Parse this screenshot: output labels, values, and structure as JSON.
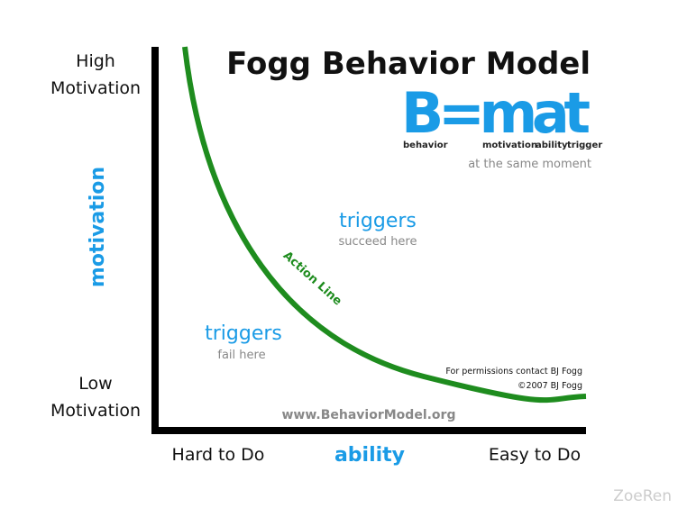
{
  "title": "Fogg Behavior Model",
  "formula": {
    "text": "B=mat",
    "labels": [
      "behavior",
      "motivation",
      "ability",
      "trigger"
    ],
    "note": "at the same moment"
  },
  "y_axis": {
    "high": [
      "High",
      "Motivation"
    ],
    "low": [
      "Low",
      "Motivation"
    ],
    "label": "motivation"
  },
  "x_axis": {
    "low": "Hard to Do",
    "label": "ability",
    "high": "Easy to Do"
  },
  "regions": [
    {
      "title": "triggers",
      "subtitle": "succeed here"
    },
    {
      "title": "triggers",
      "subtitle": "fail here"
    }
  ],
  "curve_label": "Action Line",
  "credits": [
    "For permissions contact BJ Fogg",
    "©2007 BJ Fogg"
  ],
  "url": "www.BehaviorModel.org",
  "watermark": "ZoeRen"
}
